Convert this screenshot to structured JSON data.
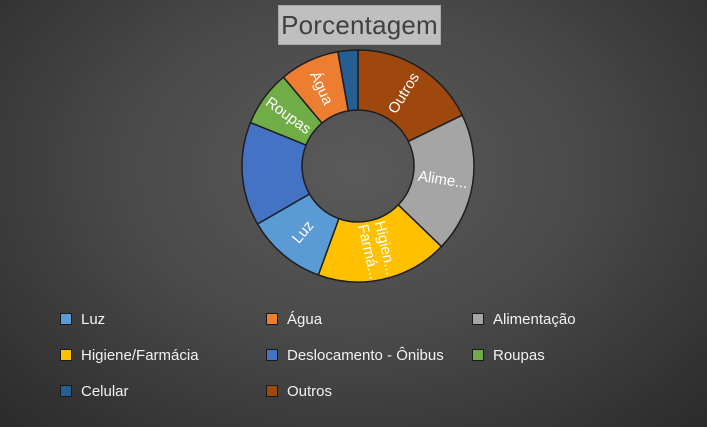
{
  "chart_data": {
    "type": "pie",
    "donut": true,
    "title": "Porcentagem",
    "categories": [
      "Luz",
      "Água",
      "Alimentação",
      "Higiene/Farmácia",
      "Deslocamento - Ônibus",
      "Roupas",
      "Celular",
      "Outros"
    ],
    "values": [
      10.0,
      7.5,
      17.5,
      16.5,
      13.0,
      7.0,
      2.5,
      16.0
    ],
    "colors": {
      "Luz": "#5b9bd5",
      "Água": "#ed7d31",
      "Alimentação": "#a5a5a5",
      "Higiene/Farmácia": "#ffc000",
      "Deslocamento - Ônibus": "#4472c4",
      "Roupas": "#70ad47",
      "Celular": "#255e91",
      "Outros": "#9e480e"
    },
    "slice_order": [
      "Outros",
      "Alimentação",
      "Higiene/Farmácia",
      "Luz",
      "Deslocamento - Ônibus",
      "Roupas",
      "Água",
      "Celular"
    ],
    "data_labels": {
      "Outros": "Outros",
      "Alimentação": "Alime...",
      "Higiene/Farmácia": "Higien... Farmá...",
      "Luz": "Luz",
      "Roupas": "Roupas",
      "Água": "Água"
    },
    "legend": {
      "position": "bottom",
      "rows": [
        [
          "Luz",
          "Água",
          "Alimentação"
        ],
        [
          "Higiene/Farmácia",
          "Deslocamento - Ônibus",
          "Roupas"
        ],
        [
          "Celular",
          "Outros"
        ]
      ]
    }
  }
}
